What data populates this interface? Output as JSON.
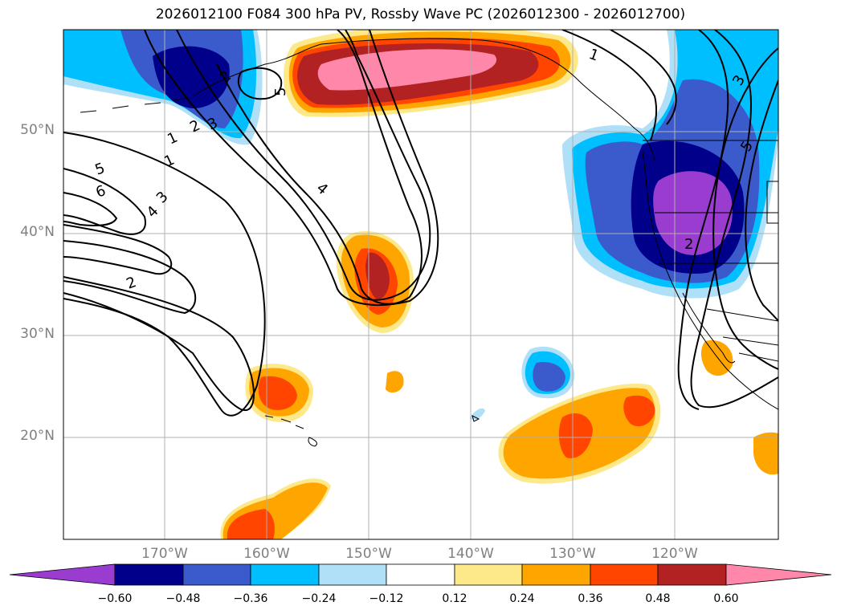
{
  "title": "2026012100 F084 300 hPa PV, Rossby Wave PC (2026012300 - 2026012700)",
  "latitude_labels": [
    "50°N",
    "40°N",
    "30°N",
    "20°N"
  ],
  "longitude_labels": [
    "170°W",
    "160°W",
    "150°W",
    "140°W",
    "130°W",
    "120°W"
  ],
  "contour_labels": [
    "1",
    "1",
    "2",
    "3",
    "3",
    "4",
    "4",
    "5",
    "5",
    "6",
    "2",
    "1",
    "3",
    "5",
    "2",
    "2"
  ],
  "colorbar": {
    "ticks": [
      "−0.60",
      "−0.48",
      "−0.36",
      "−0.24",
      "−0.12",
      "0.12",
      "0.24",
      "0.36",
      "0.48",
      "0.60"
    ],
    "colors": [
      "#9a3ccf",
      "#00008b",
      "#3b5bcc",
      "#00bfff",
      "#b0e0f8",
      "#ffffff",
      "#fde88a",
      "#ffa500",
      "#ff4500",
      "#b22222",
      "#ff88aa"
    ]
  },
  "colors": {
    "ocean": "#ffffff",
    "coast": "#000000",
    "grid": "#b0b0b0",
    "contour": "#000000"
  },
  "region": {
    "lon_range": [
      -180,
      -110
    ],
    "lat_range": [
      10,
      60
    ]
  }
}
